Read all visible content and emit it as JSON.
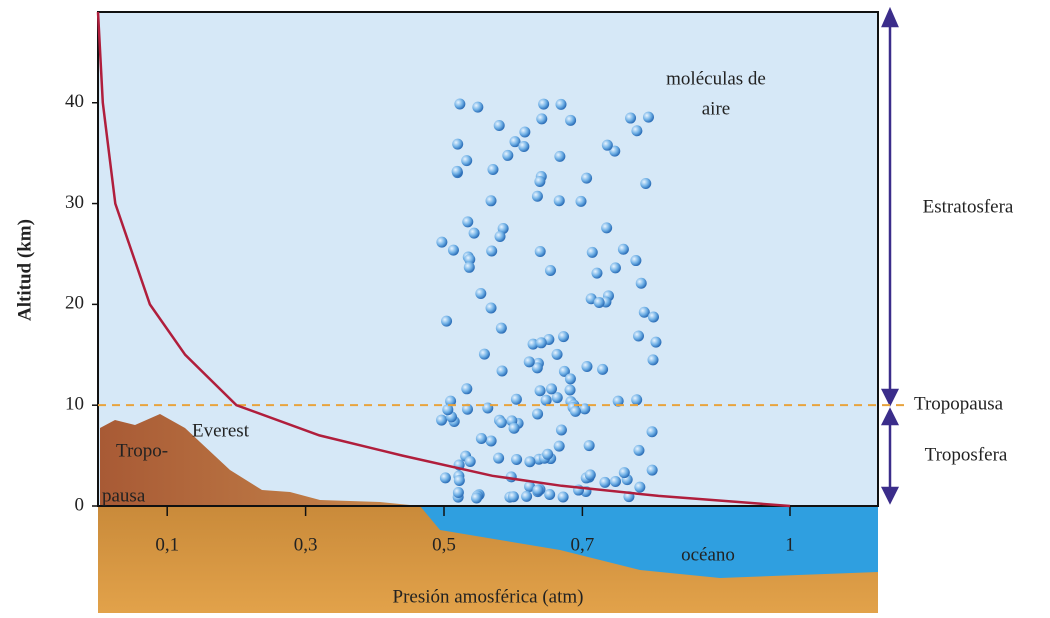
{
  "chart_data": {
    "type": "line",
    "x": [
      1,
      0.81,
      0.67,
      0.57,
      0.44,
      0.32,
      0.2,
      0.126,
      0.075,
      0.025,
      0.007,
      0
    ],
    "values": [
      0,
      1,
      2,
      3,
      5,
      7,
      10,
      15,
      20,
      30,
      40,
      49
    ],
    "color": "#b01e3c",
    "xlabel": "Presión amosférica (atm)",
    "ylabel": "Altitud (km)",
    "xlim": [
      0,
      1.13
    ],
    "ylim": [
      0,
      49
    ],
    "xticks": [
      {
        "value": 0.1,
        "label": "0,1"
      },
      {
        "value": 0.3,
        "label": "0,3"
      },
      {
        "value": 0.5,
        "label": "0,5"
      },
      {
        "value": 0.7,
        "label": "0,7"
      },
      1
    ],
    "yticks": [
      0,
      10,
      20,
      30,
      40
    ],
    "tropopause": {
      "value": 10,
      "label": "Tropopausa"
    },
    "annotations": {
      "molecules": [
        "moléculas de",
        "aire"
      ],
      "stratosphere": "Estratosfera",
      "troposphere": "Troposfera",
      "everest": "Everest",
      "mountain": [
        "Tropo-",
        "pausa"
      ],
      "ocean": "océano"
    }
  }
}
